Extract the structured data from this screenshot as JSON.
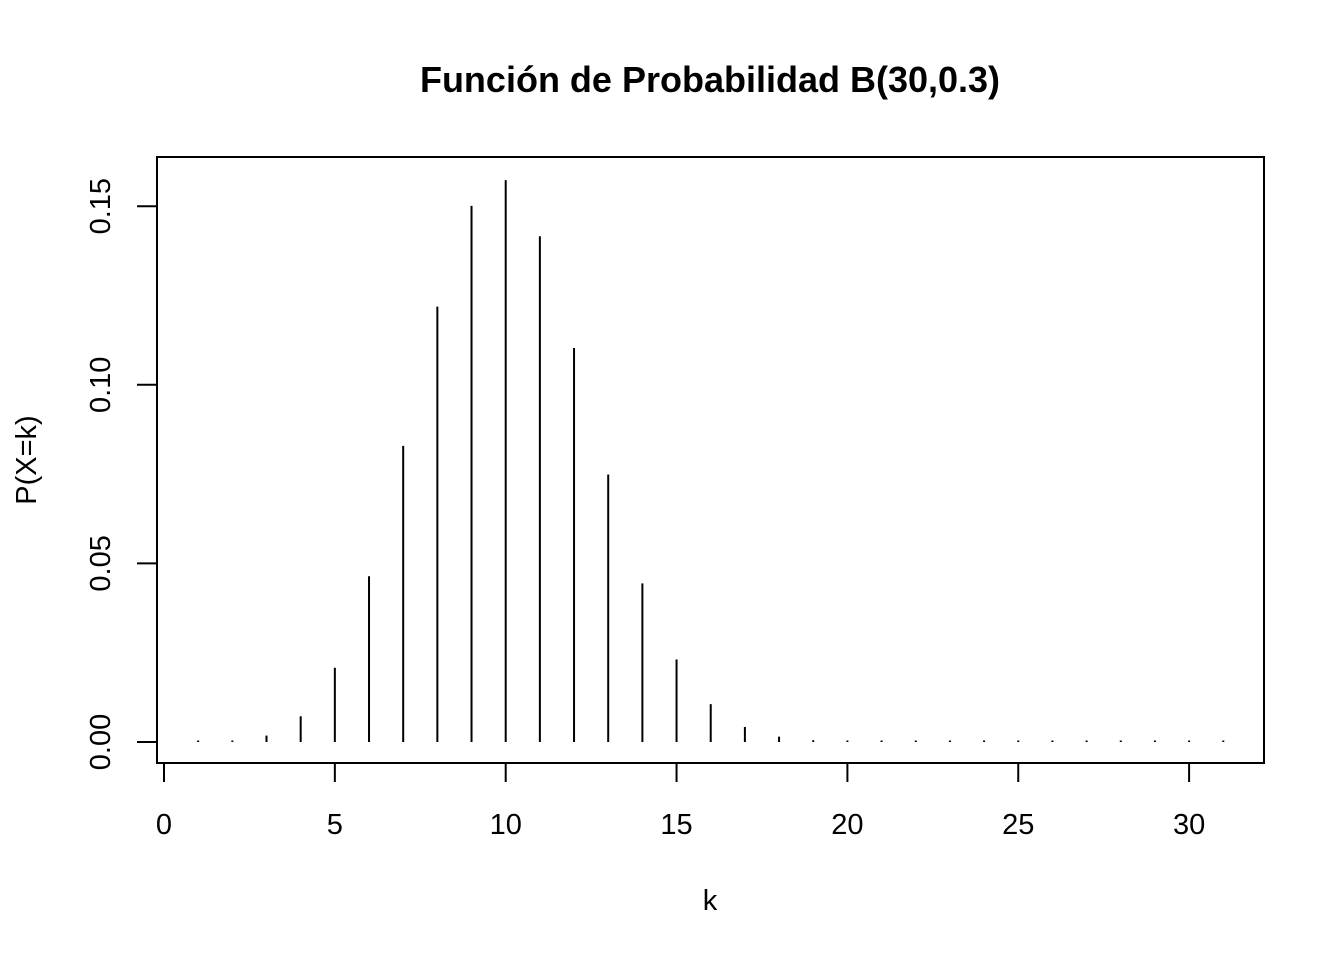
{
  "chart_data": {
    "type": "bar",
    "title": "Función de Probabilidad B(30,0.3)",
    "xlabel": "k",
    "ylabel": "P(X=k)",
    "xlim": [
      0,
      31
    ],
    "ylim": [
      0,
      0.16
    ],
    "xticks": [
      "0",
      "5",
      "10",
      "15",
      "20",
      "25",
      "30"
    ],
    "yticks": [
      "0.00",
      "0.05",
      "0.10",
      "0.15"
    ],
    "grid": false,
    "series": [
      {
        "x": [
          1,
          2,
          3,
          4,
          5,
          6,
          7,
          8,
          9,
          10,
          11,
          12,
          13,
          14,
          15,
          16,
          17,
          18,
          19,
          20,
          21,
          22,
          23,
          24,
          25,
          26,
          27,
          28,
          29,
          30,
          31
        ],
        "values": [
          0.0002,
          0.0003,
          0.0018,
          0.0072,
          0.0208,
          0.0464,
          0.0829,
          0.1219,
          0.1501,
          0.1573,
          0.1416,
          0.1103,
          0.0749,
          0.0444,
          0.0231,
          0.0106,
          0.0042,
          0.0015,
          0.0005,
          0.0001,
          0.0,
          0.0,
          0.0,
          0.0,
          0.0,
          0.0,
          0.0,
          0.0,
          0.0,
          0.0,
          0.0
        ]
      }
    ],
    "color": "#000000"
  }
}
